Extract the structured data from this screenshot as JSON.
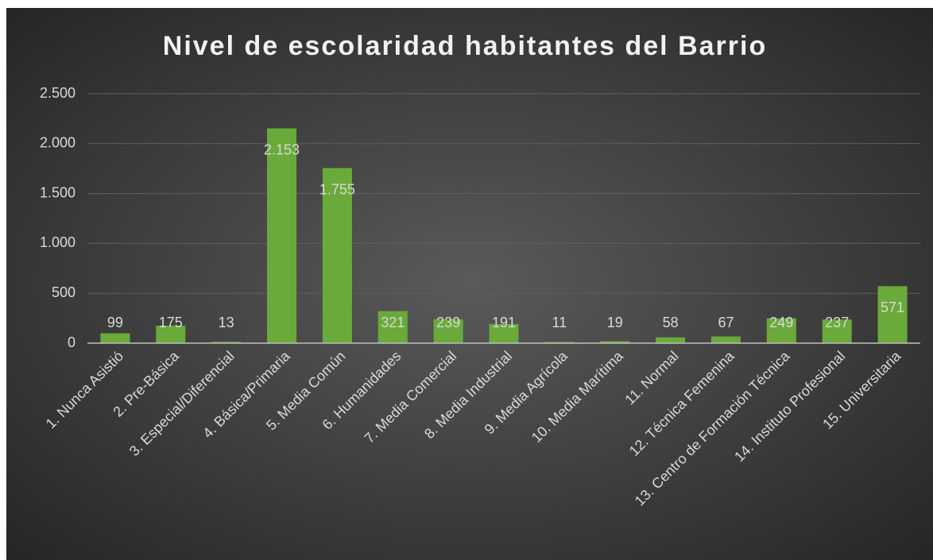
{
  "chart_data": {
    "type": "bar",
    "title": "Nivel de escolaridad habitantes del Barrio",
    "categories": [
      "1. Nunca Asistió",
      "2. Pre-Básica",
      "3. Especial/Diferencial",
      "4. Básica/Primaria",
      "5. Media Común",
      "6. Humanidades",
      "7. Media Comercial",
      "8. Media Industrial",
      "9. Media Agrícola",
      "10. Media Marítima",
      "11. Normal",
      "12. Técnica Femenina",
      "13. Centro de Formación Técnica",
      "14. Instituto Profesional",
      "15. Universitaria"
    ],
    "values": [
      99,
      175,
      13,
      2153,
      1755,
      321,
      239,
      191,
      11,
      19,
      58,
      67,
      249,
      237,
      571
    ],
    "value_labels": [
      "99",
      "175",
      "13",
      "2.153",
      "1.755",
      "321",
      "239",
      "191",
      "11",
      "19",
      "58",
      "67",
      "249",
      "237",
      "571"
    ],
    "color": "#6aaa3a",
    "ylim": [
      0,
      2500
    ],
    "yticks": [
      0,
      500,
      {
        "value": 1000,
        "label": "1.000"
      },
      {
        "value": 1500,
        "label": "1.500"
      },
      {
        "value": 2000,
        "label": "2.000"
      },
      {
        "value": 2500,
        "label": "2.500"
      }
    ],
    "grid": true
  }
}
